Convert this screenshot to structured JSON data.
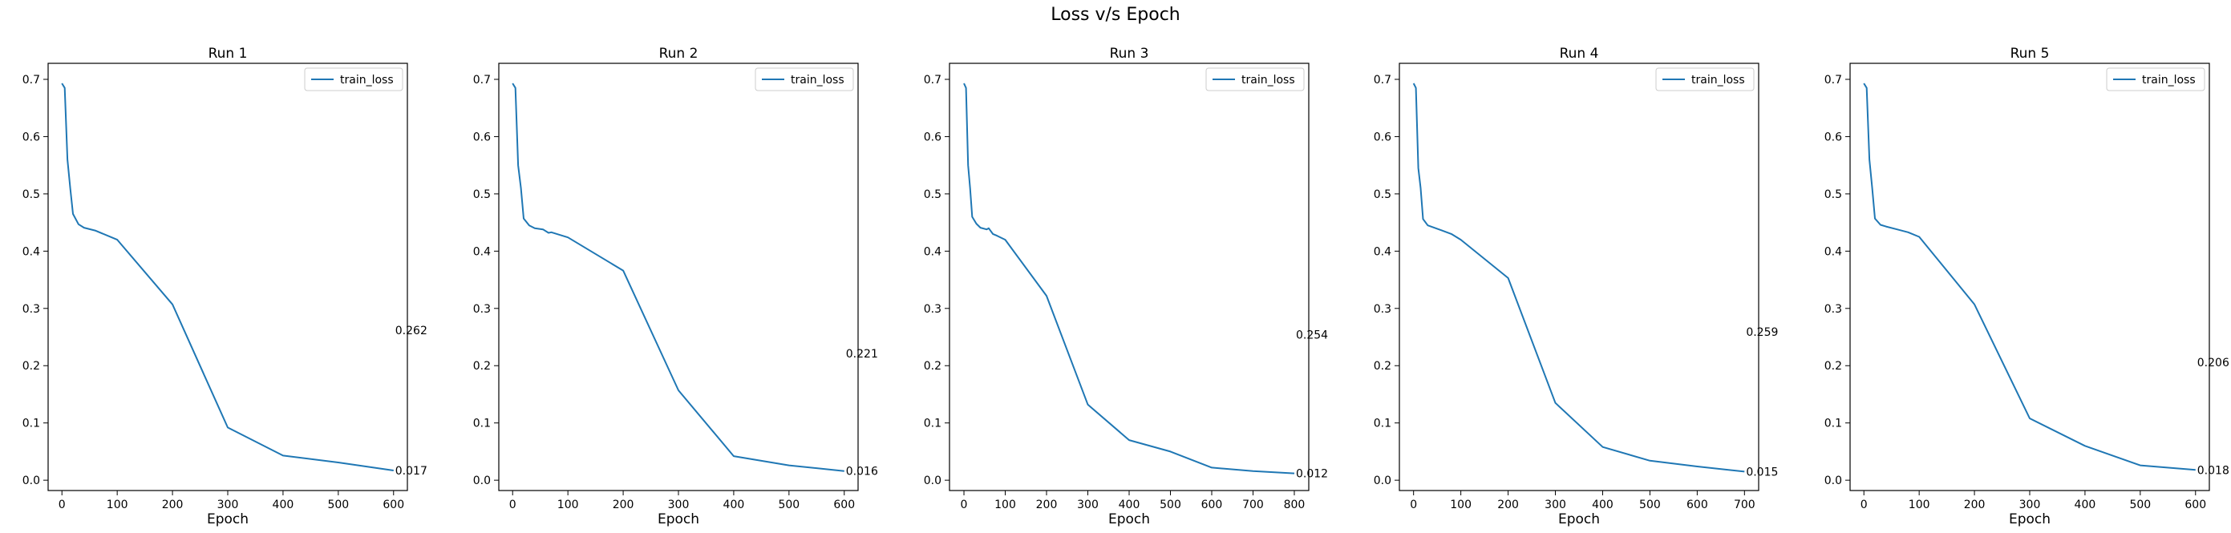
{
  "figure": {
    "title": "Loss v/s Epoch"
  },
  "colors": {
    "series": "#1f77b4",
    "axes": "#000000",
    "background": "#ffffff"
  },
  "chart_data": [
    {
      "type": "line",
      "title": "Run 1",
      "xlabel": "Epoch",
      "ylabel": "",
      "xlim": [
        -25,
        625
      ],
      "ylim": [
        -0.018,
        0.728
      ],
      "xticks": [
        0,
        100,
        200,
        300,
        400,
        500,
        600
      ],
      "yticks": [
        0.0,
        0.1,
        0.2,
        0.3,
        0.4,
        0.5,
        0.6,
        0.7
      ],
      "legend": "upper right",
      "grid": false,
      "series": [
        {
          "name": "train_loss",
          "x": [
            0,
            5,
            10,
            15,
            20,
            30,
            40,
            60,
            100,
            200,
            300,
            400,
            500,
            600
          ],
          "y": [
            0.693,
            0.685,
            0.56,
            0.51,
            0.465,
            0.447,
            0.441,
            0.436,
            0.42,
            0.307,
            0.092,
            0.043,
            0.031,
            0.017
          ]
        }
      ],
      "annotations": [
        {
          "text": "0.262",
          "x": 600,
          "y": 0.262
        },
        {
          "text": "0.017",
          "x": 600,
          "y": 0.017
        }
      ]
    },
    {
      "type": "line",
      "title": "Run 2",
      "xlabel": "Epoch",
      "ylabel": "",
      "xlim": [
        -25,
        625
      ],
      "ylim": [
        -0.018,
        0.728
      ],
      "xticks": [
        0,
        100,
        200,
        300,
        400,
        500,
        600
      ],
      "yticks": [
        0.0,
        0.1,
        0.2,
        0.3,
        0.4,
        0.5,
        0.6,
        0.7
      ],
      "legend": "upper right",
      "grid": false,
      "series": [
        {
          "name": "train_loss",
          "x": [
            0,
            5,
            10,
            15,
            20,
            30,
            40,
            55,
            65,
            70,
            80,
            100,
            200,
            300,
            400,
            500,
            600
          ],
          "y": [
            0.693,
            0.685,
            0.55,
            0.51,
            0.457,
            0.445,
            0.44,
            0.438,
            0.432,
            0.433,
            0.43,
            0.424,
            0.366,
            0.157,
            0.042,
            0.026,
            0.016
          ]
        }
      ],
      "annotations": [
        {
          "text": "0.221",
          "x": 600,
          "y": 0.221
        },
        {
          "text": "0.016",
          "x": 600,
          "y": 0.016
        }
      ]
    },
    {
      "type": "line",
      "title": "Run 3",
      "xlabel": "Epoch",
      "ylabel": "",
      "xlim": [
        -35,
        835
      ],
      "ylim": [
        -0.018,
        0.728
      ],
      "xticks": [
        0,
        100,
        200,
        300,
        400,
        500,
        600,
        700,
        800
      ],
      "yticks": [
        0.0,
        0.1,
        0.2,
        0.3,
        0.4,
        0.5,
        0.6,
        0.7
      ],
      "legend": "upper right",
      "grid": false,
      "series": [
        {
          "name": "train_loss",
          "x": [
            0,
            5,
            10,
            15,
            20,
            30,
            40,
            55,
            60,
            70,
            80,
            100,
            200,
            300,
            400,
            500,
            600,
            700,
            800
          ],
          "y": [
            0.693,
            0.685,
            0.55,
            0.51,
            0.46,
            0.448,
            0.441,
            0.438,
            0.44,
            0.43,
            0.427,
            0.42,
            0.322,
            0.132,
            0.07,
            0.05,
            0.022,
            0.016,
            0.012
          ]
        }
      ],
      "annotations": [
        {
          "text": "0.254",
          "x": 800,
          "y": 0.254
        },
        {
          "text": "0.012",
          "x": 800,
          "y": 0.012
        }
      ]
    },
    {
      "type": "line",
      "title": "Run 4",
      "xlabel": "Epoch",
      "ylabel": "",
      "xlim": [
        -30,
        730
      ],
      "ylim": [
        -0.018,
        0.728
      ],
      "xticks": [
        0,
        100,
        200,
        300,
        400,
        500,
        600,
        700
      ],
      "yticks": [
        0.0,
        0.1,
        0.2,
        0.3,
        0.4,
        0.5,
        0.6,
        0.7
      ],
      "legend": "upper right",
      "grid": false,
      "series": [
        {
          "name": "train_loss",
          "x": [
            0,
            5,
            10,
            15,
            20,
            30,
            40,
            60,
            80,
            100,
            200,
            300,
            400,
            500,
            600,
            700
          ],
          "y": [
            0.693,
            0.685,
            0.545,
            0.51,
            0.456,
            0.445,
            0.442,
            0.436,
            0.43,
            0.42,
            0.353,
            0.135,
            0.058,
            0.034,
            0.024,
            0.015
          ]
        }
      ],
      "annotations": [
        {
          "text": "0.259",
          "x": 700,
          "y": 0.259
        },
        {
          "text": "0.015",
          "x": 700,
          "y": 0.015
        }
      ]
    },
    {
      "type": "line",
      "title": "Run 5",
      "xlabel": "Epoch",
      "ylabel": "",
      "xlim": [
        -25,
        625
      ],
      "ylim": [
        -0.018,
        0.728
      ],
      "xticks": [
        0,
        100,
        200,
        300,
        400,
        500,
        600
      ],
      "yticks": [
        0.0,
        0.1,
        0.2,
        0.3,
        0.4,
        0.5,
        0.6,
        0.7
      ],
      "legend": "upper right",
      "grid": false,
      "series": [
        {
          "name": "train_loss",
          "x": [
            0,
            5,
            10,
            15,
            20,
            30,
            40,
            60,
            80,
            100,
            200,
            300,
            400,
            500,
            600
          ],
          "y": [
            0.693,
            0.685,
            0.56,
            0.51,
            0.457,
            0.446,
            0.443,
            0.438,
            0.433,
            0.425,
            0.307,
            0.108,
            0.06,
            0.026,
            0.018
          ]
        }
      ],
      "annotations": [
        {
          "text": "0.206",
          "x": 600,
          "y": 0.206
        },
        {
          "text": "0.018",
          "x": 600,
          "y": 0.018
        }
      ]
    }
  ]
}
